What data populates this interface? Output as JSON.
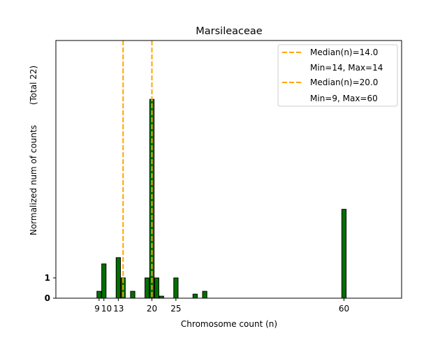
{
  "chart_data": {
    "type": "bar",
    "title": "Marsileaceae",
    "xlabel": "Chromosome count (n)",
    "ylabel": "Normalized num of counts",
    "ylabel2": "(Total 22)",
    "xlim": [
      0,
      72
    ],
    "ylim": [
      0,
      12.7
    ],
    "xticks": [
      9,
      10,
      13,
      20,
      25,
      60
    ],
    "yticks": [
      0,
      1
    ],
    "bar_color": "#007000",
    "line_color": "#FFA500",
    "bars": [
      {
        "x": 9,
        "value": 0.34
      },
      {
        "x": 10,
        "value": 1.69
      },
      {
        "x": 13,
        "value": 2.0
      },
      {
        "x": 14,
        "value": 1.0
      },
      {
        "x": 16,
        "value": 0.34
      },
      {
        "x": 19,
        "value": 1.0
      },
      {
        "x": 20,
        "value": 9.8
      },
      {
        "x": 21,
        "value": 1.0
      },
      {
        "x": 22,
        "value": 0.1
      },
      {
        "x": 25,
        "value": 1.0
      },
      {
        "x": 29,
        "value": 0.2
      },
      {
        "x": 31,
        "value": 0.34
      },
      {
        "x": 60,
        "value": 4.38
      }
    ],
    "median_lines": [
      {
        "x": 14.0,
        "label": "Median(n)=14.0",
        "range_label": "Min=14, Max=14"
      },
      {
        "x": 20.0,
        "label": "Median(n)=20.0",
        "range_label": "Min=9, Max=60"
      }
    ],
    "legend_position": "top-right",
    "grid": false
  }
}
